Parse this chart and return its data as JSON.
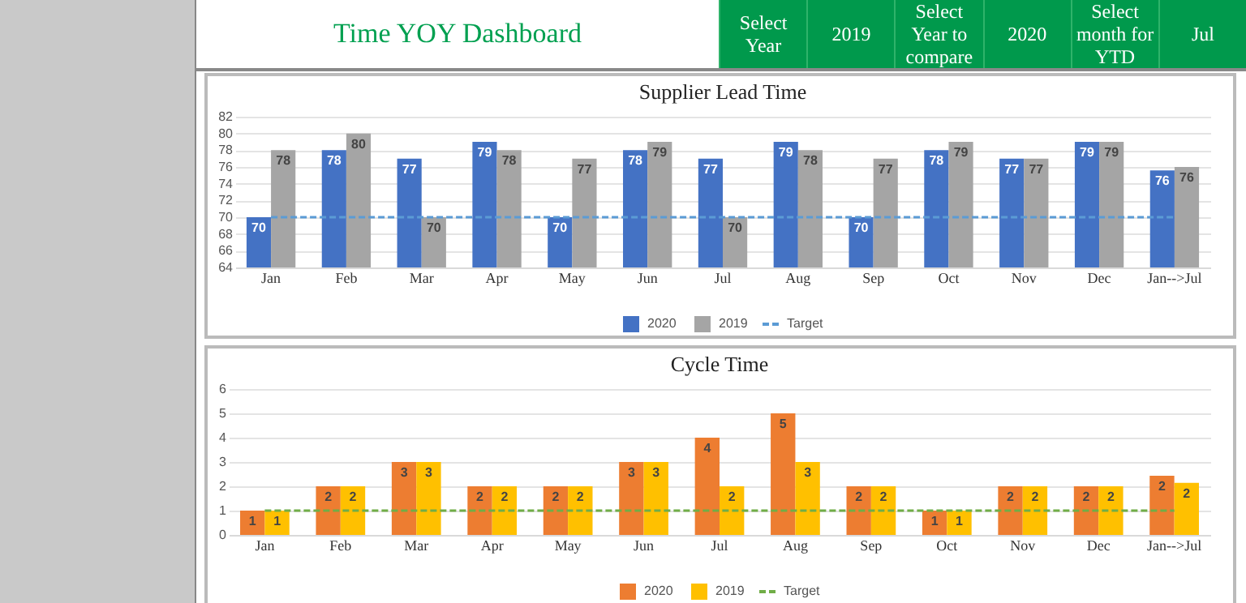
{
  "chart_data": [
    {
      "type": "other",
      "title": "Time  YOY Dashboard",
      "annotations": [
        "Select Year",
        "2019",
        "Select Year to compare",
        "2020",
        "Select month for YTD",
        "Jul"
      ]
    },
    {
      "type": "bar",
      "title": "Supplier Lead Time",
      "categories": [
        "Jan",
        "Feb",
        "Mar",
        "Apr",
        "May",
        "Jun",
        "Jul",
        "Aug",
        "Sep",
        "Oct",
        "Nov",
        "Dec",
        "Jan-->Jul"
      ],
      "ylim": [
        64,
        82
      ],
      "yticks": [
        64,
        66,
        68,
        70,
        72,
        74,
        76,
        78,
        80,
        82
      ],
      "grid": "y",
      "legend": "bottom",
      "series": [
        {
          "name": "2020",
          "color": "#4472c4",
          "values": [
            70,
            78,
            77,
            79,
            70,
            78,
            77,
            79,
            70,
            78,
            77,
            79,
            75.6
          ],
          "value_labels": [
            "70",
            "78",
            "77",
            "79",
            "70",
            "78",
            "77",
            "79",
            "70",
            "78",
            "77",
            "79",
            "76"
          ]
        },
        {
          "name": "2019",
          "color": "#a5a5a5",
          "values": [
            78,
            80,
            70,
            78,
            77,
            79,
            70,
            78,
            77,
            79,
            77,
            79,
            76
          ],
          "value_labels": [
            "78",
            "80",
            "70",
            "78",
            "77",
            "79",
            "70",
            "78",
            "77",
            "79",
            "77",
            "79",
            "76"
          ]
        },
        {
          "name": "Target",
          "type": "line",
          "line_style": "dashed",
          "color": "#5b9bd5",
          "values": [
            70,
            70,
            70,
            70,
            70,
            70,
            70,
            70,
            70,
            70,
            70,
            70,
            70
          ]
        }
      ]
    },
    {
      "type": "bar",
      "title": "Cycle Time",
      "categories": [
        "Jan",
        "Feb",
        "Mar",
        "Apr",
        "May",
        "Jun",
        "Jul",
        "Aug",
        "Sep",
        "Oct",
        "Nov",
        "Dec",
        "Jan-->Jul"
      ],
      "ylim": [
        0,
        6
      ],
      "yticks": [
        0,
        1,
        2,
        3,
        4,
        5,
        6
      ],
      "grid": "y",
      "legend": "bottom",
      "series": [
        {
          "name": "2020",
          "color": "#ed7d31",
          "values": [
            1,
            2,
            3,
            2,
            2,
            3,
            4,
            5,
            2,
            1,
            2,
            2,
            2.43
          ],
          "value_labels": [
            "1",
            "2",
            "3",
            "2",
            "2",
            "3",
            "4",
            "5",
            "2",
            "1",
            "2",
            "2",
            "2"
          ]
        },
        {
          "name": "2019",
          "color": "#ffc000",
          "values": [
            1,
            2,
            3,
            2,
            2,
            3,
            2,
            3,
            2,
            1,
            2,
            2,
            2.14
          ],
          "value_labels": [
            "1",
            "2",
            "3",
            "2",
            "2",
            "3",
            "2",
            "3",
            "2",
            "1",
            "2",
            "2",
            "2"
          ]
        },
        {
          "name": "Target",
          "type": "line",
          "line_style": "dashed",
          "color": "#70ad47",
          "values": [
            1,
            1,
            1,
            1,
            1,
            1,
            1,
            1,
            1,
            1,
            1,
            1,
            1
          ]
        }
      ]
    }
  ]
}
